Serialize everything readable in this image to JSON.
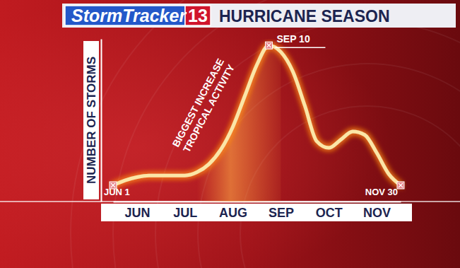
{
  "chart_data": {
    "type": "line",
    "brand": "StormTracker",
    "brand_number": "13",
    "title": "HURRICANE SEASON",
    "ylabel": "NUMBER OF STORMS",
    "annotation": [
      "BIGGEST INCREASE",
      "TROPICAL ACTIVITY"
    ],
    "start_label": "JUN 1",
    "peak_label": "SEP 10",
    "end_label": "NOV 30",
    "categories": [
      null,
      null,
      "JUN",
      null,
      null,
      null,
      "JUL",
      null,
      null,
      null,
      "AUG",
      null,
      null,
      null,
      "SEP",
      null,
      null,
      null,
      "OCT",
      null,
      null,
      null,
      "NOV",
      null,
      null
    ],
    "values": [
      10,
      13,
      15,
      16,
      16,
      16,
      16,
      18,
      23,
      32,
      46,
      65,
      84,
      96,
      92,
      80,
      59,
      37,
      33,
      38,
      43,
      41,
      30,
      17,
      10
    ],
    "color": "#fbe6a6",
    "ylim": [
      0,
      100
    ],
    "tick_labels": "x"
  }
}
